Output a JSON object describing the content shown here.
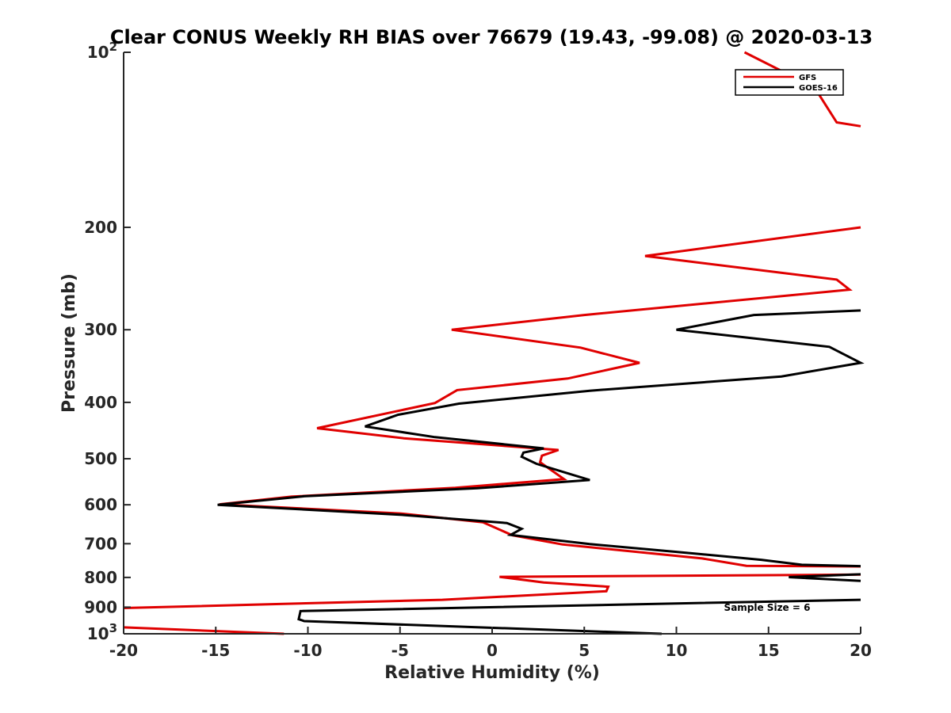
{
  "chart_data": {
    "type": "line",
    "title": "Clear CONUS Weekly RH BIAS over 76679 (19.43, -99.08) @ 2020-03-13",
    "xlabel": "Relative Humidity (%)",
    "ylabel": "Pressure (mb)",
    "xlim": [
      -20,
      20
    ],
    "ylim": [
      100,
      1000
    ],
    "y_scale": "log",
    "y_reversed": true,
    "grid": false,
    "x_ticks": [
      {
        "value": -20,
        "label": "-20"
      },
      {
        "value": -15,
        "label": "-15"
      },
      {
        "value": -10,
        "label": "-10"
      },
      {
        "value": -5,
        "label": "-5"
      },
      {
        "value": 0,
        "label": "0"
      },
      {
        "value": 5,
        "label": "5"
      },
      {
        "value": 10,
        "label": "10"
      },
      {
        "value": 15,
        "label": "15"
      },
      {
        "value": 20,
        "label": "20"
      }
    ],
    "y_ticks": [
      {
        "value": 100,
        "base": "10",
        "exp": "2"
      },
      {
        "value": 200,
        "base": "200",
        "exp": ""
      },
      {
        "value": 300,
        "base": "300",
        "exp": ""
      },
      {
        "value": 400,
        "base": "400",
        "exp": ""
      },
      {
        "value": 500,
        "base": "500",
        "exp": ""
      },
      {
        "value": 600,
        "base": "600",
        "exp": ""
      },
      {
        "value": 700,
        "base": "700",
        "exp": ""
      },
      {
        "value": 800,
        "base": "800",
        "exp": ""
      },
      {
        "value": 900,
        "base": "900",
        "exp": ""
      },
      {
        "value": 1000,
        "base": "10",
        "exp": "3"
      }
    ],
    "legend_position": "top-right",
    "annotation": "Sample Size = 6",
    "series": [
      {
        "name": "GFS",
        "color": "#e00000",
        "points": [
          [
            13.7,
            100
          ],
          [
            17.5,
            115
          ],
          [
            18.7,
            132
          ],
          [
            20,
            134
          ],
          [
            null,
            null
          ],
          [
            20,
            200
          ],
          [
            8.3,
            224
          ],
          [
            18.7,
            246
          ],
          [
            19.4,
            256
          ],
          [
            5.0,
            283
          ],
          [
            -2.2,
            300
          ],
          [
            4.8,
            322
          ],
          [
            8.0,
            342
          ],
          [
            4.1,
            364
          ],
          [
            -1.9,
            381
          ],
          [
            -3.1,
            401
          ],
          [
            -9.5,
            443
          ],
          [
            -4.8,
            461
          ],
          [
            3.6,
            483
          ],
          [
            2.7,
            494
          ],
          [
            2.6,
            507
          ],
          [
            3.9,
            542
          ],
          [
            -2.0,
            561
          ],
          [
            -10.9,
            581
          ],
          [
            -14.8,
            599
          ],
          [
            -5.0,
            621
          ],
          [
            -0.5,
            643
          ],
          [
            1.1,
            677
          ],
          [
            3.8,
            702
          ],
          [
            11.4,
            742
          ],
          [
            13.8,
            764
          ],
          [
            20,
            766
          ],
          [
            null,
            null
          ],
          [
            20,
            791
          ],
          [
            0.4,
            798
          ],
          [
            2.8,
            816
          ],
          [
            6.3,
            830
          ],
          [
            6.2,
            845
          ],
          [
            -2.7,
            874
          ],
          [
            -20,
            903
          ],
          [
            null,
            null
          ],
          [
            -20,
            975
          ],
          [
            -11.3,
            1000
          ]
        ]
      },
      {
        "name": "GOES-16",
        "color": "#000000",
        "points": [
          [
            20,
            278
          ],
          [
            14.2,
            283
          ],
          [
            10.0,
            300
          ],
          [
            18.3,
            321
          ],
          [
            20,
            342
          ],
          [
            15.7,
            361
          ],
          [
            5.3,
            382
          ],
          [
            -1.8,
            402
          ],
          [
            -5.1,
            420
          ],
          [
            -6.9,
            440
          ],
          [
            -3.1,
            459
          ],
          [
            2.8,
            480
          ],
          [
            1.7,
            488
          ],
          [
            1.6,
            496
          ],
          [
            2.4,
            510
          ],
          [
            5.3,
            544
          ],
          [
            -0.8,
            562
          ],
          [
            -10.2,
            580
          ],
          [
            -14.9,
            600
          ],
          [
            -5.0,
            624
          ],
          [
            0.8,
            645
          ],
          [
            1.6,
            660
          ],
          [
            1.0,
            676
          ],
          [
            5.3,
            701
          ],
          [
            10.0,
            723
          ],
          [
            14.6,
            746
          ],
          [
            16.8,
            761
          ],
          [
            20,
            765
          ],
          [
            null,
            null
          ],
          [
            20,
            790
          ],
          [
            16.1,
            799
          ],
          [
            20,
            811
          ],
          [
            null,
            null
          ],
          [
            20,
            874
          ],
          [
            -10.4,
            914
          ],
          [
            -10.5,
            944
          ],
          [
            -10.2,
            951
          ],
          [
            9.2,
            1000
          ]
        ]
      }
    ]
  }
}
